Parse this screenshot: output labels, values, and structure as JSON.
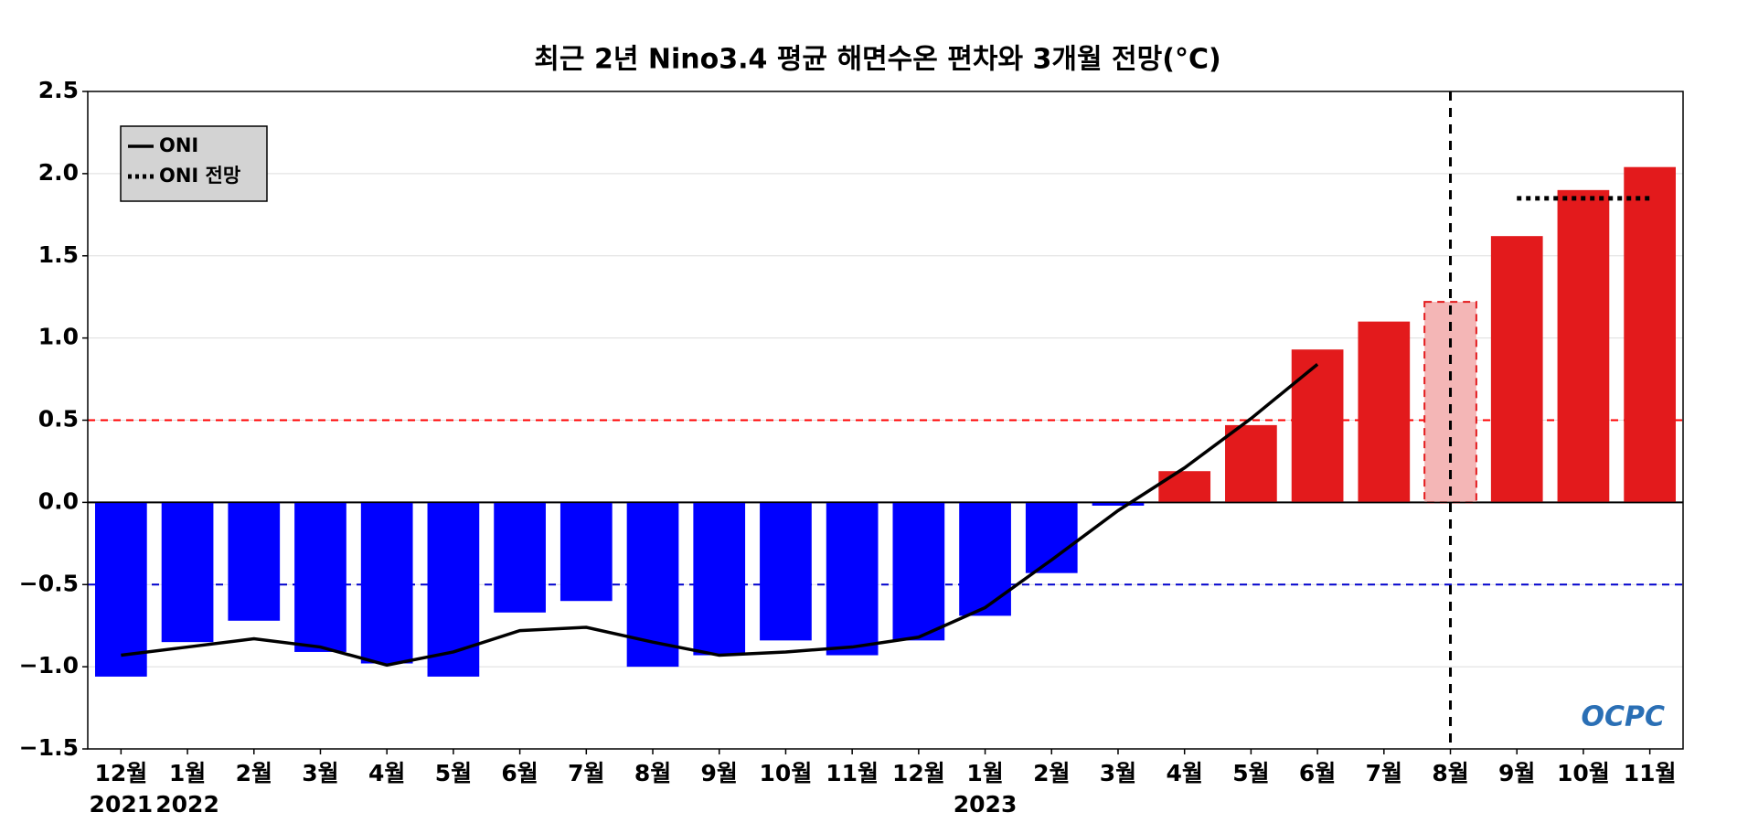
{
  "chart_data": {
    "type": "bar",
    "title": "최근 2년 Nino3.4 평균 해면수온 편차와 3개월 전망(°C)",
    "categories": [
      "12월",
      "1월",
      "2월",
      "3월",
      "4월",
      "5월",
      "6월",
      "7월",
      "8월",
      "9월",
      "10월",
      "11월",
      "12월",
      "1월",
      "2월",
      "3월",
      "4월",
      "5월",
      "6월",
      "7월",
      "8월",
      "9월",
      "10월",
      "11월"
    ],
    "year_labels": [
      "2021",
      "2022",
      null,
      null,
      null,
      null,
      null,
      null,
      null,
      null,
      null,
      null,
      null,
      "2023",
      null,
      null,
      null,
      null,
      null,
      null,
      null,
      null,
      null,
      null
    ],
    "values": [
      -1.06,
      -0.85,
      -0.72,
      -0.91,
      -0.98,
      -1.06,
      -0.67,
      -0.6,
      -1.0,
      -0.93,
      -0.84,
      -0.93,
      -0.84,
      -0.69,
      -0.43,
      -0.02,
      0.19,
      0.47,
      0.93,
      1.1,
      1.22,
      1.62,
      1.9,
      2.04
    ],
    "colors": [
      "#0000ff",
      "#0000ff",
      "#0000ff",
      "#0000ff",
      "#0000ff",
      "#0000ff",
      "#0000ff",
      "#0000ff",
      "#0000ff",
      "#0000ff",
      "#0000ff",
      "#0000ff",
      "#0000ff",
      "#0000ff",
      "#0000ff",
      "#0000ff",
      "#e31a1c",
      "#e31a1c",
      "#e31a1c",
      "#e31a1c",
      "#f4b6b6",
      "#e31a1c",
      "#e31a1c",
      "#e31a1c"
    ],
    "bar_styles": [
      "solid",
      "solid",
      "solid",
      "solid",
      "solid",
      "solid",
      "solid",
      "solid",
      "solid",
      "solid",
      "solid",
      "solid",
      "solid",
      "solid",
      "solid",
      "solid",
      "solid",
      "solid",
      "solid",
      "solid",
      "dashed",
      "solid",
      "solid",
      "solid"
    ],
    "series": [
      {
        "name": "ONI",
        "color": "#000000",
        "style": "solid",
        "values": [
          -0.93,
          -0.88,
          -0.83,
          -0.88,
          -0.99,
          -0.91,
          -0.78,
          -0.76,
          -0.85,
          -0.93,
          -0.91,
          -0.88,
          -0.82,
          -0.64,
          -0.35,
          -0.05,
          0.21,
          0.51,
          0.84,
          null,
          null,
          null,
          null,
          null
        ]
      },
      {
        "name": "ONI 전망",
        "color": "#000000",
        "style": "dotted",
        "values": [
          null,
          null,
          null,
          null,
          null,
          null,
          null,
          null,
          null,
          null,
          null,
          null,
          null,
          null,
          null,
          null,
          null,
          null,
          null,
          null,
          null,
          1.85,
          1.85,
          1.85
        ]
      }
    ],
    "hlines": [
      {
        "value": 0.5,
        "color": "#ff0000",
        "style": "dashed"
      },
      {
        "value": -0.5,
        "color": "#0000cc",
        "style": "dashed"
      },
      {
        "value": 0,
        "color": "#000000",
        "style": "solid"
      }
    ],
    "vline_category": 20,
    "ylim": [
      -1.5,
      2.5
    ],
    "yticks": [
      {
        "value": -1.5,
        "label": "−1.5"
      },
      {
        "value": -1,
        "label": "−1.0"
      },
      {
        "value": -0.5,
        "label": "−0.5"
      },
      {
        "value": 0,
        "label": "0.0"
      },
      0.5,
      {
        "value": 1,
        "label": "1.0"
      },
      1.5,
      {
        "value": 2,
        "label": "2.0"
      },
      2.5
    ],
    "grid": true,
    "legend": "upper left",
    "logo": "OCPC"
  }
}
